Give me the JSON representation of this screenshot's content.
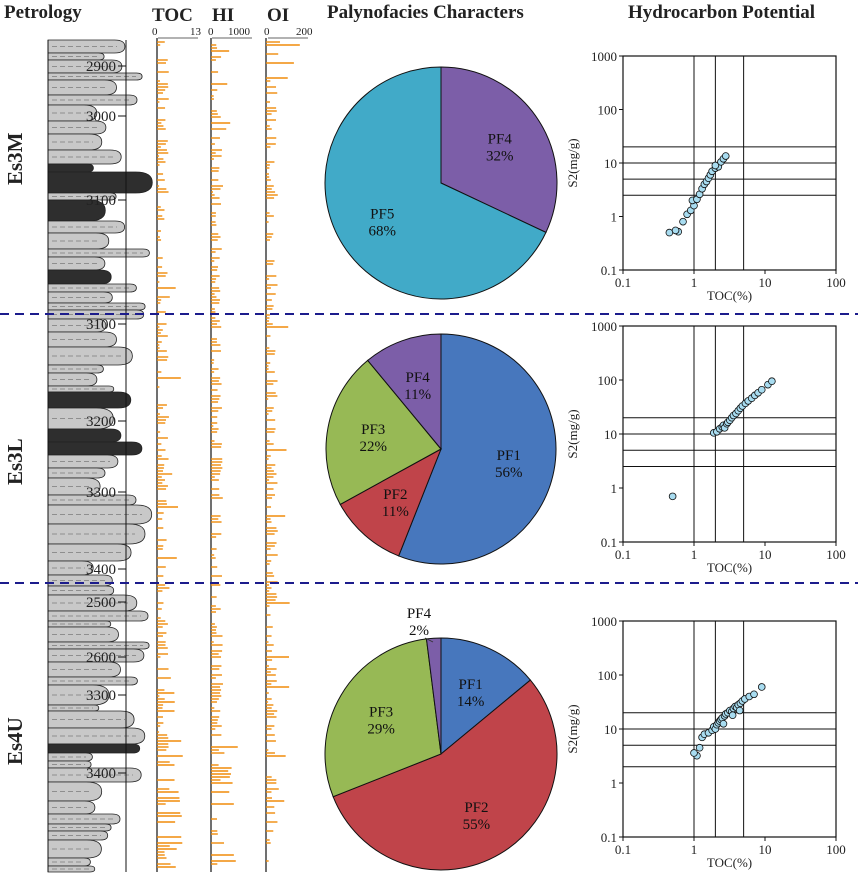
{
  "headers": {
    "petrology": "Petrology",
    "toc": "TOC",
    "hi": "HI",
    "oi": "OI",
    "palyno": "Palynofacies Characters",
    "hydro": "Hydrocarbon Potential"
  },
  "log_scales": {
    "toc": {
      "min": "0",
      "max": "13"
    },
    "hi": {
      "min": "0",
      "max": "1000"
    },
    "oi": {
      "min": "0",
      "max": "200"
    }
  },
  "colors": {
    "sandstone": "#c8c8c8",
    "mudstone": "#2e2e2e",
    "log_bars": "#f08c0a",
    "divider": "#1c1c8c",
    "PF1": "#4777bd",
    "PF2": "#c0444a",
    "PF3": "#97b955",
    "PF4": "#7c5ea8",
    "PF5": "#41aac8",
    "point": "#a8dcf0"
  },
  "chart_data": [
    {
      "type": "pie",
      "interval": "Es3M",
      "title": "Palynofacies Characters",
      "slices": [
        {
          "label": "PF4",
          "value": 32,
          "text": "32%"
        },
        {
          "label": "PF5",
          "value": 68,
          "text": "68%"
        }
      ],
      "depth_ticks": [
        "2900",
        "3000",
        "3100"
      ]
    },
    {
      "type": "pie",
      "interval": "Es3L",
      "slices": [
        {
          "label": "PF1",
          "value": 56,
          "text": "56%"
        },
        {
          "label": "PF2",
          "value": 11,
          "text": "11%"
        },
        {
          "label": "PF3",
          "value": 22,
          "text": "22%"
        },
        {
          "label": "PF4",
          "value": 11,
          "text": "11%"
        }
      ],
      "depth_ticks": [
        "3100",
        "3200",
        "3300",
        "3400"
      ]
    },
    {
      "type": "pie",
      "interval": "Es4U",
      "slices": [
        {
          "label": "PF1",
          "value": 14,
          "text": "14%"
        },
        {
          "label": "PF2",
          "value": 55,
          "text": "55%"
        },
        {
          "label": "PF3",
          "value": 29,
          "text": "29%"
        },
        {
          "label": "PF4",
          "value": 2,
          "text": "2%"
        }
      ],
      "depth_ticks": [
        "2500",
        "2600",
        "3300",
        "3400"
      ]
    },
    {
      "type": "scatter",
      "interval": "Es3M",
      "title": "Hydrocarbon Potential",
      "xlabel": "TOC(%)",
      "ylabel": "S2(mg/g)",
      "xscale": "log",
      "yscale": "log",
      "xlim": [
        0.1,
        100
      ],
      "ylim": [
        0.1,
        1000
      ],
      "xticks": [
        "0.1",
        "1",
        "10",
        "100"
      ],
      "yticks": [
        "0.1",
        "1",
        "10",
        "100",
        "1000"
      ],
      "vlines": [
        1,
        2,
        5
      ],
      "hlines": [
        2.5,
        5,
        10,
        20
      ],
      "points": [
        [
          0.45,
          0.5
        ],
        [
          0.6,
          0.52
        ],
        [
          0.55,
          0.55
        ],
        [
          0.7,
          0.8
        ],
        [
          0.8,
          1.1
        ],
        [
          0.9,
          1.3
        ],
        [
          1.0,
          1.6
        ],
        [
          0.95,
          2.0
        ],
        [
          1.1,
          2.1
        ],
        [
          1.2,
          2.6
        ],
        [
          1.3,
          3.3
        ],
        [
          1.4,
          4.0
        ],
        [
          1.5,
          4.5
        ],
        [
          1.6,
          5.2
        ],
        [
          1.7,
          6.0
        ],
        [
          1.8,
          7.0
        ],
        [
          2.0,
          8.0
        ],
        [
          2.2,
          8.5
        ],
        [
          2.0,
          9.0
        ],
        [
          2.4,
          10.5
        ],
        [
          2.6,
          12.0
        ],
        [
          2.8,
          13.5
        ]
      ]
    },
    {
      "type": "scatter",
      "interval": "Es3L",
      "xlabel": "TOC(%)",
      "ylabel": "S2(mg/g)",
      "xscale": "log",
      "yscale": "log",
      "xlim": [
        0.1,
        100
      ],
      "ylim": [
        0.1,
        1000
      ],
      "xticks": [
        "0.1",
        "1",
        "10",
        "100"
      ],
      "yticks": [
        "0.1",
        "1",
        "10",
        "100",
        "1000"
      ],
      "vlines": [
        1,
        2,
        5
      ],
      "hlines": [
        2.5,
        5,
        10,
        20
      ],
      "points": [
        [
          0.5,
          0.7
        ],
        [
          1.9,
          10.5
        ],
        [
          2.1,
          11.0
        ],
        [
          2.3,
          12.5
        ],
        [
          2.5,
          13.5
        ],
        [
          2.6,
          14.5
        ],
        [
          2.7,
          13.0
        ],
        [
          2.9,
          15.5
        ],
        [
          3.0,
          16.5
        ],
        [
          3.2,
          18.0
        ],
        [
          3.4,
          20.0
        ],
        [
          3.6,
          22.0
        ],
        [
          3.9,
          24.0
        ],
        [
          4.2,
          27.0
        ],
        [
          4.5,
          30.0
        ],
        [
          4.8,
          33.0
        ],
        [
          5.3,
          37.0
        ],
        [
          5.8,
          41.0
        ],
        [
          6.5,
          46.0
        ],
        [
          7.2,
          52.0
        ],
        [
          8.0,
          58.0
        ],
        [
          9.0,
          66.0
        ],
        [
          11.0,
          82.0
        ],
        [
          12.5,
          95.0
        ]
      ]
    },
    {
      "type": "scatter",
      "interval": "Es4U",
      "xlabel": "TOC(%)",
      "ylabel": "S2(mg/g)",
      "xscale": "log",
      "yscale": "log",
      "xlim": [
        0.1,
        100
      ],
      "ylim": [
        0.1,
        1000
      ],
      "xticks": [
        "0.1",
        "1",
        "10",
        "100"
      ],
      "yticks": [
        "0.1",
        "1",
        "10",
        "100",
        "1000"
      ],
      "vlines": [
        1,
        2,
        5
      ],
      "hlines": [
        2,
        5,
        10,
        20
      ],
      "points": [
        [
          1.1,
          3.2
        ],
        [
          1.0,
          3.6
        ],
        [
          1.2,
          4.5
        ],
        [
          1.3,
          7.0
        ],
        [
          1.4,
          8.0
        ],
        [
          1.6,
          8.5
        ],
        [
          1.8,
          9.5
        ],
        [
          1.9,
          11.0
        ],
        [
          2.0,
          10.0
        ],
        [
          2.1,
          12.0
        ],
        [
          2.2,
          13.0
        ],
        [
          2.3,
          14.0
        ],
        [
          2.4,
          15.0
        ],
        [
          2.5,
          16.0
        ],
        [
          2.7,
          17.5
        ],
        [
          2.8,
          19.0
        ],
        [
          3.0,
          20.0
        ],
        [
          3.2,
          22.0
        ],
        [
          3.4,
          21.0
        ],
        [
          3.6,
          24.0
        ],
        [
          3.8,
          26.0
        ],
        [
          4.0,
          25.0
        ],
        [
          4.2,
          28.0
        ],
        [
          4.5,
          30.0
        ],
        [
          4.8,
          33.0
        ],
        [
          5.2,
          36.0
        ],
        [
          6.0,
          40.0
        ],
        [
          7.0,
          44.0
        ],
        [
          9.0,
          60.0
        ],
        [
          3.5,
          18.0
        ],
        [
          2.6,
          12.5
        ],
        [
          4.4,
          22.0
        ]
      ]
    }
  ],
  "petrology_column": {
    "unit_labels": [
      "Es3M",
      "Es3L",
      "Es4U"
    ]
  }
}
